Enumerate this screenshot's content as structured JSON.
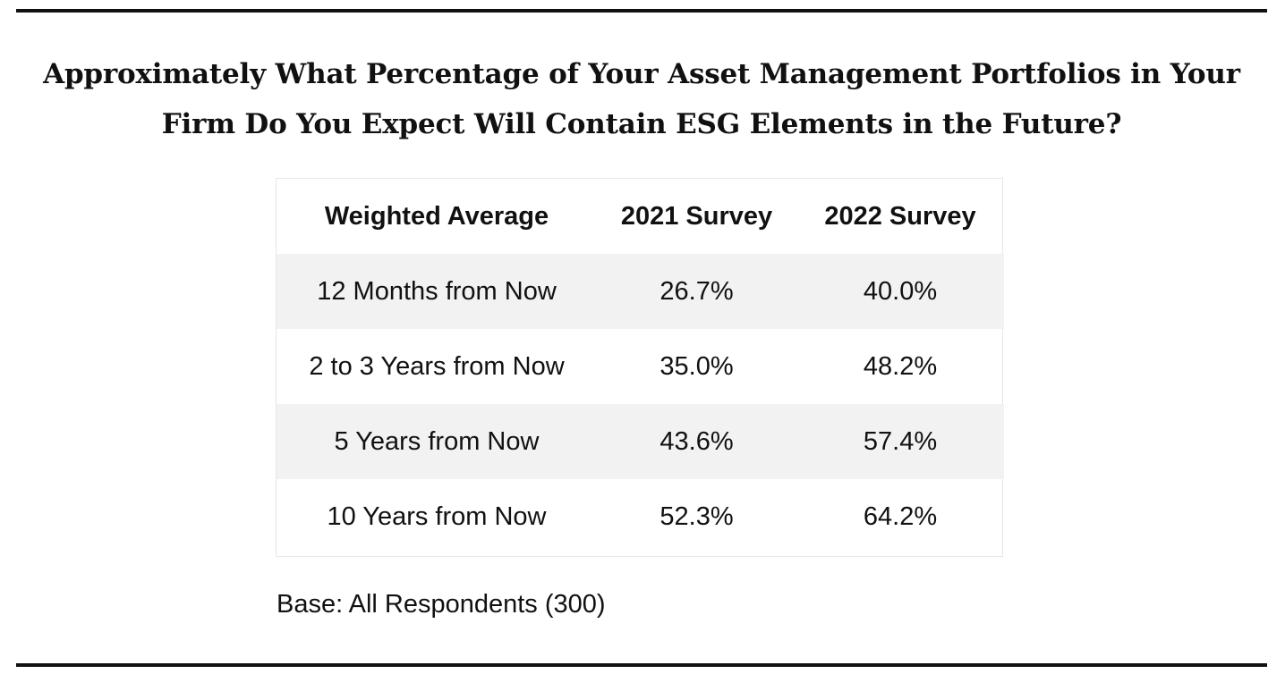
{
  "title": "Approximately What Percentage of Your Asset Management Portfolios in Your Firm Do You Expect Will Contain ESG Elements in the Future?",
  "base_note": "Base: All Respondents (300)",
  "chart_data": {
    "type": "table",
    "title": "Approximately What Percentage of Your Asset Management Portfolios in Your Firm Do You Expect Will Contain ESG Elements in the Future?",
    "columns": [
      "Weighted Average",
      "2021 Survey",
      "2022 Survey"
    ],
    "rows": [
      {
        "label": "12 Months from Now",
        "values": [
          "26.7%",
          "40.0%"
        ]
      },
      {
        "label": "2 to 3 Years from Now",
        "values": [
          "35.0%",
          "48.2%"
        ]
      },
      {
        "label": "5 Years from Now",
        "values": [
          "43.6%",
          "57.4%"
        ]
      },
      {
        "label": "10 Years from Now",
        "values": [
          "52.3%",
          "64.2%"
        ]
      }
    ],
    "series": [
      {
        "name": "2021 Survey",
        "values": [
          26.7,
          35.0,
          43.6,
          52.3
        ]
      },
      {
        "name": "2022 Survey",
        "values": [
          40.0,
          48.2,
          57.4,
          64.2
        ]
      }
    ],
    "categories": [
      "12 Months from Now",
      "2 to 3 Years from Now",
      "5 Years from Now",
      "10 Years from Now"
    ],
    "unit": "%",
    "note": "Base: All Respondents (300)"
  },
  "colors": {
    "rule": "#111111",
    "row_shade": "#f2f2f2",
    "table_border": "#e6e6e6"
  }
}
